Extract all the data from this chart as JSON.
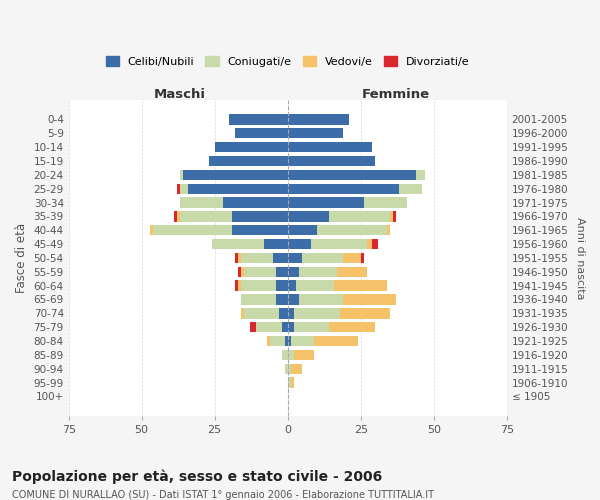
{
  "age_groups": [
    "100+",
    "95-99",
    "90-94",
    "85-89",
    "80-84",
    "75-79",
    "70-74",
    "65-69",
    "60-64",
    "55-59",
    "50-54",
    "45-49",
    "40-44",
    "35-39",
    "30-34",
    "25-29",
    "20-24",
    "15-19",
    "10-14",
    "5-9",
    "0-4"
  ],
  "birth_years": [
    "≤ 1905",
    "1906-1910",
    "1911-1915",
    "1916-1920",
    "1921-1925",
    "1926-1930",
    "1931-1935",
    "1936-1940",
    "1941-1945",
    "1946-1950",
    "1951-1955",
    "1956-1960",
    "1961-1965",
    "1966-1970",
    "1971-1975",
    "1976-1980",
    "1981-1985",
    "1986-1990",
    "1991-1995",
    "1996-2000",
    "2001-2005"
  ],
  "maschi": {
    "celibi": [
      0,
      0,
      0,
      0,
      1,
      2,
      3,
      4,
      4,
      4,
      5,
      8,
      19,
      19,
      22,
      34,
      36,
      27,
      25,
      18,
      20
    ],
    "coniugati": [
      0,
      0,
      1,
      2,
      5,
      9,
      12,
      12,
      12,
      11,
      11,
      18,
      27,
      18,
      15,
      3,
      1,
      0,
      0,
      0,
      0
    ],
    "vedovi": [
      0,
      0,
      0,
      0,
      1,
      0,
      1,
      0,
      1,
      1,
      1,
      0,
      1,
      1,
      0,
      0,
      0,
      0,
      0,
      0,
      0
    ],
    "divorziati": [
      0,
      0,
      0,
      0,
      0,
      2,
      0,
      0,
      1,
      1,
      1,
      0,
      0,
      1,
      0,
      1,
      0,
      0,
      0,
      0,
      0
    ]
  },
  "femmine": {
    "nubili": [
      0,
      0,
      0,
      0,
      1,
      2,
      2,
      4,
      3,
      4,
      5,
      8,
      10,
      14,
      26,
      38,
      44,
      30,
      29,
      19,
      21
    ],
    "coniugate": [
      0,
      1,
      1,
      2,
      8,
      12,
      16,
      15,
      13,
      13,
      14,
      19,
      24,
      21,
      15,
      8,
      3,
      0,
      0,
      0,
      0
    ],
    "vedove": [
      0,
      1,
      4,
      7,
      15,
      16,
      17,
      18,
      18,
      10,
      6,
      2,
      1,
      1,
      0,
      0,
      0,
      0,
      0,
      0,
      0
    ],
    "divorziate": [
      0,
      0,
      0,
      0,
      0,
      0,
      0,
      0,
      0,
      0,
      1,
      2,
      0,
      1,
      0,
      0,
      0,
      0,
      0,
      0,
      0
    ]
  },
  "colors": {
    "celibi": "#3d6da8",
    "coniugati": "#c8d9aa",
    "vedovi": "#f5c169",
    "divorziati": "#d9282d"
  },
  "xlim": 75,
  "ylabel": "Fasce di età",
  "ylabel_right": "Anni di nascita",
  "title": "Popolazione per età, sesso e stato civile - 2006",
  "subtitle": "COMUNE DI NURALLAO (SU) - Dati ISTAT 1° gennaio 2006 - Elaborazione TUTTITALIA.IT",
  "legend_labels": [
    "Celibi/Nubili",
    "Coniugati/e",
    "Vedovi/e",
    "Divorziati/e"
  ],
  "maschi_label": "Maschi",
  "femmine_label": "Femmine",
  "bg_color": "#f5f5f5",
  "plot_bg_color": "#ffffff"
}
